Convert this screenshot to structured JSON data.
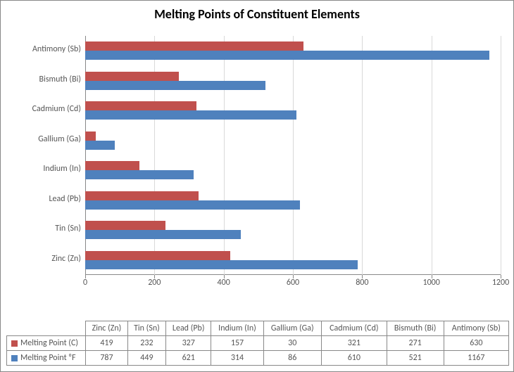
{
  "title": "Melting Points of Constituent Elements",
  "title_fontsize": 18,
  "background_color": "#ffffff",
  "grid_color": "#d9d9d9",
  "axis_text_color": "#595959",
  "chart": {
    "type": "bar",
    "orientation": "horizontal",
    "xlim": [
      0,
      1200
    ],
    "xtick_step": 200,
    "xticks": [
      0,
      200,
      400,
      600,
      800,
      1000,
      1200
    ],
    "categories": [
      "Zinc (Zn)",
      "Tin (Sn)",
      "Lead (Pb)",
      "Indium (In)",
      "Gallium (Ga)",
      "Cadmium (Cd)",
      "Bismuth (Bi)",
      "Antimony (Sb)"
    ],
    "series": [
      {
        "name": "Melting Point (C)",
        "color": "#c0504d",
        "values": [
          419,
          232,
          327,
          157,
          30,
          321,
          271,
          630
        ]
      },
      {
        "name": "Melting Point ⁰F",
        "color": "#4f81bd",
        "values": [
          787,
          449,
          621,
          314,
          86,
          610,
          521,
          1167
        ]
      }
    ]
  },
  "label_fontsize": 12
}
